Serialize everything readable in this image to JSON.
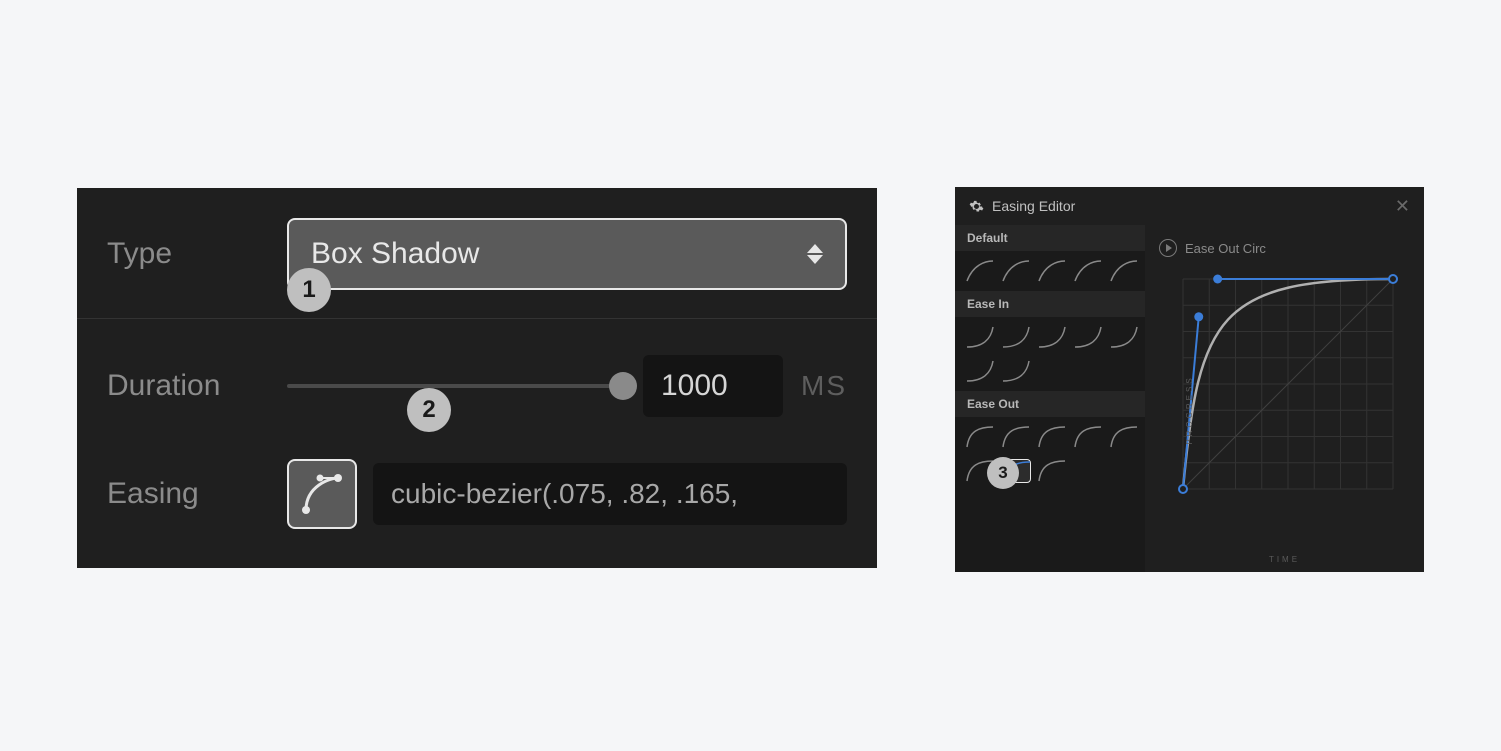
{
  "page_background": "#f5f6f8",
  "panel_dark": "#1f1f1f",
  "text_muted": "#8b8b8b",
  "text_light": "#e8e8e8",
  "accent_blue": "#3b7dd8",
  "badge_bg": "#bfbfbf",
  "badge_text": "#1a1a1a",
  "left": {
    "type_label": "Type",
    "type_value": "Box Shadow",
    "duration_label": "Duration",
    "duration_value": "1000",
    "duration_unit": "MS",
    "duration_slider_percent": 100,
    "easing_label": "Easing",
    "easing_value": "cubic-bezier(.075, .82, .165,",
    "step_1": "1",
    "step_2": "2"
  },
  "editor": {
    "title": "Easing Editor",
    "step_3": "3",
    "groups": [
      {
        "name": "Default",
        "rows": [
          5
        ]
      },
      {
        "name": "Ease In",
        "rows": [
          5,
          2
        ]
      },
      {
        "name": "Ease Out",
        "rows": [
          5,
          3
        ]
      }
    ],
    "selected_group": "Ease Out",
    "selected_row": 1,
    "selected_col": 1,
    "curve_name": "Ease Out Circ",
    "axis_y": "PROGRESS",
    "axis_x": "TIME",
    "bezier": {
      "p0": [
        0,
        1
      ],
      "p1": [
        0.075,
        0.18
      ],
      "p2": [
        0.165,
        0
      ],
      "p3": [
        1,
        0
      ],
      "handle1_color": "#3b7dd8",
      "handle2_color": "#3b7dd8",
      "curve_color": "#b0b0b0",
      "grid_color": "#333333",
      "diag_color": "#404040"
    }
  }
}
